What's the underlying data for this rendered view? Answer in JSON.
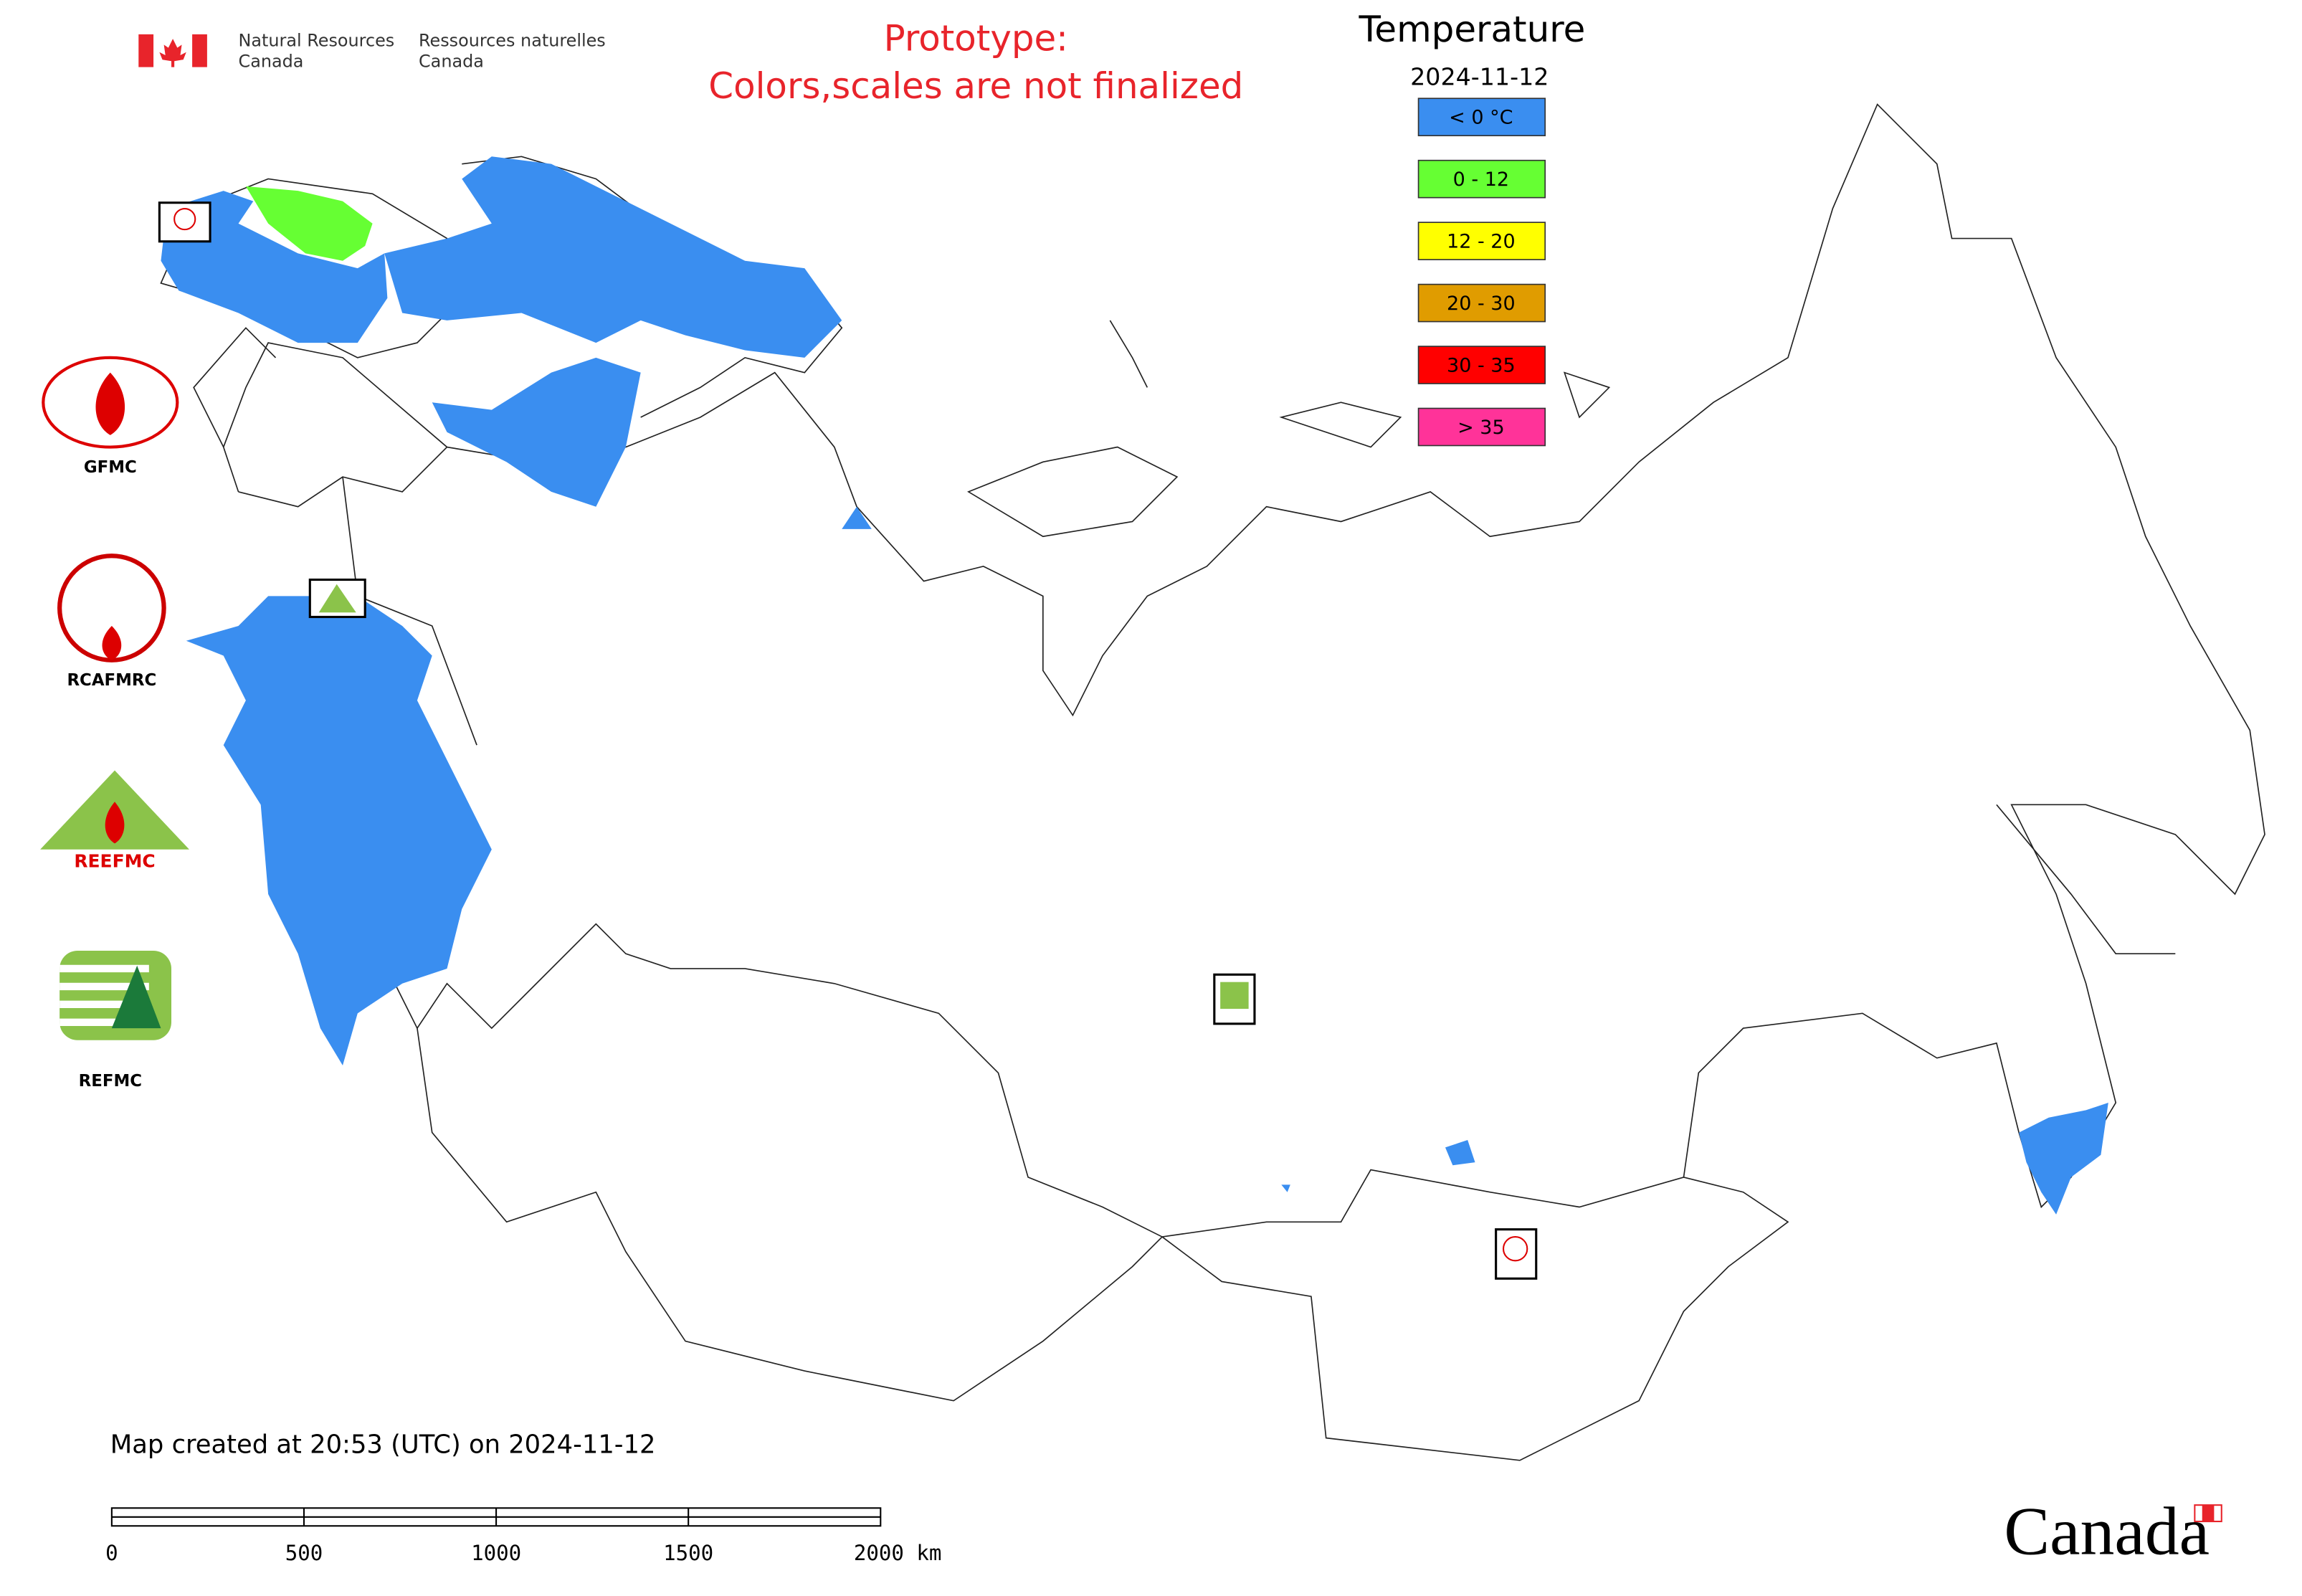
{
  "header": {
    "agency_en": [
      "Natural Resources",
      "Canada"
    ],
    "agency_fr": [
      "Ressources naturelles",
      "Canada"
    ],
    "prototype": [
      "Prototype:",
      "Colors,scales are not finalized"
    ]
  },
  "legend": {
    "title": "Temperature",
    "date": "2024-11-12",
    "items": [
      {
        "label": "< 0 °C",
        "color": "#3a8ef0"
      },
      {
        "label": "0 - 12",
        "color": "#66ff33"
      },
      {
        "label": "12 - 20",
        "color": "#ffff00"
      },
      {
        "label": "20 - 30",
        "color": "#e09c00"
      },
      {
        "label": "30 - 35",
        "color": "#ff0000"
      },
      {
        "label": "> 35",
        "color": "#ff3399"
      }
    ]
  },
  "logos": {
    "labels": [
      "GFMC",
      "RCAFMRC",
      "REFMC"
    ],
    "reefmc": "REEFMC"
  },
  "footer": {
    "created": "Map created at 20:53 (UTC) on 2024-11-12",
    "scale": [
      "0",
      "500",
      "1000",
      "1500",
      "2000 km"
    ],
    "wordmark": "Canada"
  }
}
